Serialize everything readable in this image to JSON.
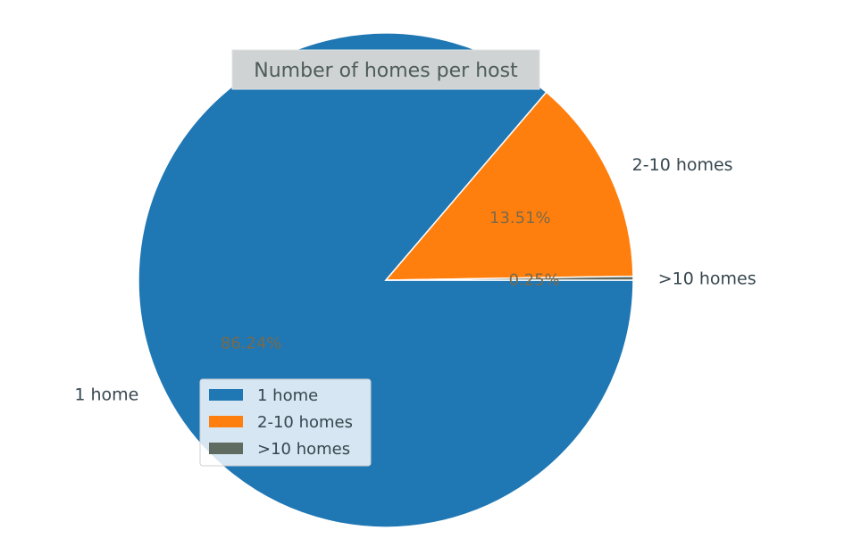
{
  "chart_data": {
    "type": "pie",
    "title": "Number of homes per host",
    "categories": [
      "1 home",
      "2-10 homes",
      ">10 homes"
    ],
    "values": [
      86.24,
      13.51,
      0.25
    ],
    "value_labels": [
      "86.24%",
      "13.51%",
      "0.25%"
    ],
    "colors": [
      "#1f77b4",
      "#ff7f0e",
      "#5f6b61"
    ],
    "start_angle_deg": 0,
    "direction": "counterclockwise",
    "legend": {
      "placement": "lower-left",
      "entries": [
        "1 home",
        "2-10 homes",
        ">10 homes"
      ]
    }
  }
}
